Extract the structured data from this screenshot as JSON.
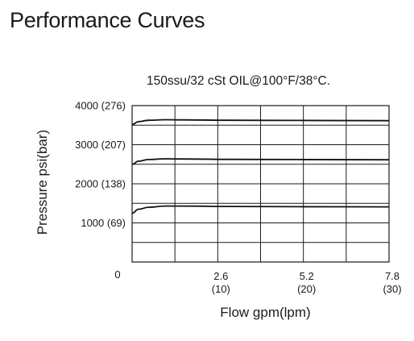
{
  "page": {
    "title": "Performance Curves"
  },
  "chart_data": {
    "type": "line",
    "title": "150ssu/32 cSt OIL@100°F/38°C.",
    "xlabel": "Flow gpm(lpm)",
    "ylabel": "Pressure psi(bar)",
    "xlim": [
      0,
      7.8
    ],
    "ylim": [
      0,
      4000
    ],
    "grid": true,
    "x_ticks": [
      {
        "value": 0,
        "label": "0",
        "sub": ""
      },
      {
        "value": 2.6,
        "label": "2.6",
        "sub": "(10)"
      },
      {
        "value": 5.2,
        "label": "5.2",
        "sub": "(20)"
      },
      {
        "value": 7.8,
        "label": "7.8",
        "sub": "(30)"
      }
    ],
    "y_ticks": [
      {
        "value": 1000,
        "label": "1000 (69)"
      },
      {
        "value": 2000,
        "label": "2000 (138)"
      },
      {
        "value": 3000,
        "label": "3000 (207)"
      },
      {
        "value": 4000,
        "label": "4000 (276)"
      }
    ],
    "x_gridlines": [
      1.3,
      2.6,
      3.9,
      5.2,
      6.5
    ],
    "y_gridlines": [
      500,
      1000,
      1500,
      2000,
      2500,
      3000,
      3500
    ],
    "series": [
      {
        "x": [
          0,
          0.2,
          0.5,
          1.0,
          1.5,
          3.0,
          5.0,
          7.8
        ],
        "y": [
          1250,
          1350,
          1400,
          1430,
          1430,
          1420,
          1415,
          1410
        ]
      },
      {
        "x": [
          0,
          0.2,
          0.5,
          1.0,
          1.5,
          3.0,
          5.0,
          7.8
        ],
        "y": [
          2500,
          2580,
          2620,
          2640,
          2635,
          2625,
          2620,
          2615
        ]
      },
      {
        "x": [
          0,
          0.2,
          0.5,
          1.0,
          1.5,
          3.0,
          5.0,
          7.8
        ],
        "y": [
          3520,
          3590,
          3625,
          3640,
          3635,
          3625,
          3620,
          3615
        ]
      }
    ]
  }
}
